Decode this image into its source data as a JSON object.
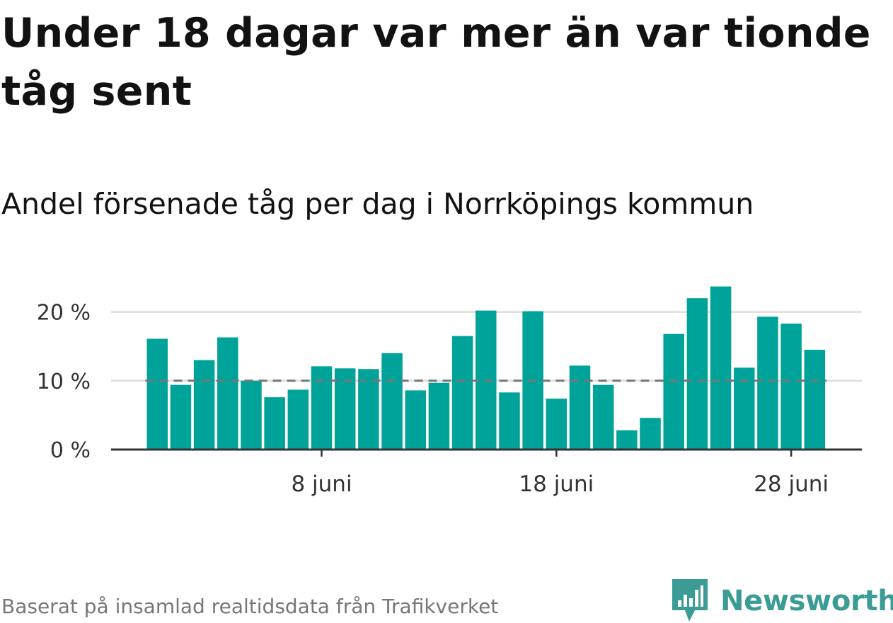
{
  "title": "Under 18 dagar var mer än var tionde tåg sent",
  "subtitle": "Andel försenade tåg per dag i Norrköpings kommun",
  "source": "Baserat på insamlad realtidsdata från Trafikverket",
  "brand": "Newsworthy",
  "colors": {
    "bar": "#00a399",
    "reference_line": "#777777",
    "grid": "#dddddd",
    "axis": "#333333",
    "brand": "#3a9c95"
  },
  "chart_data": {
    "type": "bar",
    "x": [
      "1 juni",
      "2 juni",
      "3 juni",
      "4 juni",
      "5 juni",
      "6 juni",
      "7 juni",
      "8 juni",
      "9 juni",
      "10 juni",
      "11 juni",
      "12 juni",
      "13 juni",
      "14 juni",
      "15 juni",
      "16 juni",
      "17 juni",
      "18 juni",
      "19 juni",
      "20 juni",
      "21 juni",
      "22 juni",
      "23 juni",
      "24 juni",
      "25 juni",
      "26 juni",
      "27 juni",
      "28 juni",
      "29 juni"
    ],
    "values": [
      16.1,
      9.4,
      13.0,
      16.3,
      10.0,
      7.6,
      8.7,
      12.1,
      11.8,
      11.7,
      14.0,
      8.6,
      9.7,
      16.5,
      20.2,
      8.3,
      20.1,
      7.4,
      12.2,
      9.4,
      2.8,
      4.6,
      16.8,
      22.0,
      23.7,
      11.9,
      19.3,
      18.3,
      14.5
    ],
    "reference_line": 10,
    "ylim": [
      0,
      25
    ],
    "y_ticks": [
      0,
      10,
      20
    ],
    "y_tick_labels": [
      "0 %",
      "10 %",
      "20 %"
    ],
    "x_ticks": [
      "8 juni",
      "18 juni",
      "28 juni"
    ],
    "grid": "horizontal",
    "xlabel": "",
    "ylabel": ""
  }
}
